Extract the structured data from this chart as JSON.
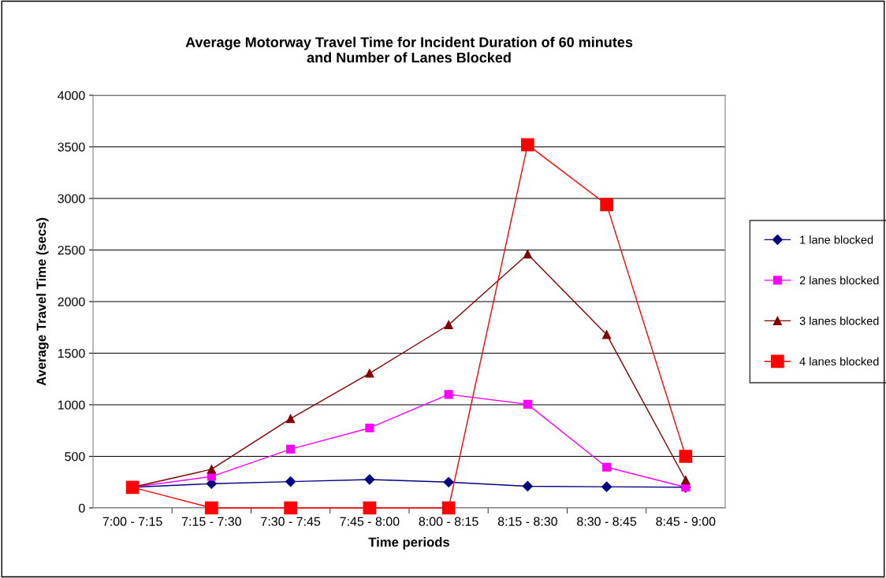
{
  "chart_data": {
    "type": "line",
    "title": "Average Motorway Travel Time for Incident Duration of 60 minutes\nand Number of Lanes Blocked",
    "xlabel": "Time periods",
    "ylabel": "Average Travel Time (secs)",
    "categories": [
      "7:00 - 7:15",
      "7:15 - 7:30",
      "7:30 - 7:45",
      "7:45 - 8:00",
      "8:00 - 8:15",
      "8:15 - 8:30",
      "8:30 - 8:45",
      "8:45 - 9:00"
    ],
    "series": [
      {
        "name": "1 lane blocked",
        "color": "#000080",
        "marker": "diamond",
        "values": [
          200,
          235,
          255,
          275,
          250,
          210,
          205,
          200
        ]
      },
      {
        "name": "2 lanes blocked",
        "color": "#ff00ff",
        "marker": "square",
        "values": [
          200,
          305,
          570,
          775,
          1100,
          1005,
          395,
          200
        ]
      },
      {
        "name": "3 lanes blocked",
        "color": "#800000",
        "marker": "triangle",
        "values": [
          200,
          375,
          865,
          1305,
          1775,
          2460,
          1680,
          270
        ]
      },
      {
        "name": "4 lanes blocked",
        "color": "#ff0000",
        "marker": "square",
        "values": [
          200,
          0,
          0,
          0,
          0,
          3520,
          2940,
          500
        ]
      }
    ],
    "ylim": [
      0,
      4000
    ],
    "yticks": [
      0,
      500,
      1000,
      1500,
      2000,
      2500,
      3000,
      3500,
      4000
    ],
    "grid": "y",
    "legend": "right",
    "line_style": "solid"
  }
}
